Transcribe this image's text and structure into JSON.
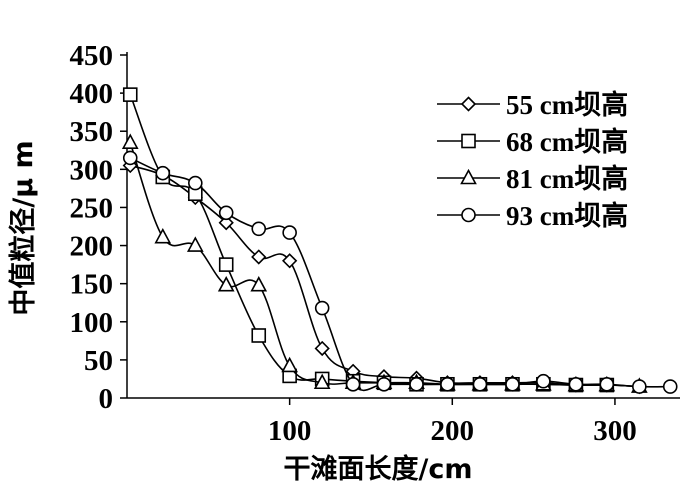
{
  "chart_data": {
    "type": "line",
    "xlabel": "干滩面长度/cm",
    "ylabel": "中值粒径/μ m",
    "xlim": [
      0,
      340
    ],
    "ylim": [
      0,
      450
    ],
    "xticks": [
      100,
      200,
      300
    ],
    "yticks": [
      0,
      50,
      100,
      150,
      200,
      250,
      300,
      350,
      400,
      450
    ],
    "legend_position": "top-right",
    "series": [
      {
        "name": "55 cm坝高",
        "marker": "diamond",
        "x": [
          2,
          22,
          42,
          61,
          81,
          100,
          120,
          139,
          158,
          178,
          197,
          217,
          237,
          256,
          276,
          295,
          315
        ],
        "y": [
          305,
          292,
          263,
          230,
          185,
          180,
          65,
          35,
          28,
          26,
          20,
          20,
          20,
          20,
          17,
          17,
          15
        ]
      },
      {
        "name": "68 cm坝高",
        "marker": "square",
        "x": [
          2,
          22,
          42,
          61,
          81,
          100,
          120,
          139,
          158,
          178,
          197,
          217,
          237,
          256,
          276,
          295
        ],
        "y": [
          398,
          290,
          268,
          175,
          82,
          29,
          25,
          22,
          20,
          18,
          18,
          18,
          18,
          18,
          17,
          17
        ]
      },
      {
        "name": "81 cm坝高",
        "marker": "triangle",
        "x": [
          2,
          22,
          42,
          61,
          81,
          100,
          120,
          139,
          158,
          178,
          197,
          217,
          237,
          256,
          276,
          295,
          315
        ],
        "y": [
          335,
          211,
          200,
          148,
          148,
          42,
          20,
          20,
          20,
          20,
          18,
          18,
          18,
          18,
          17,
          17,
          15
        ]
      },
      {
        "name": "93 cm坝高",
        "marker": "circle",
        "x": [
          2,
          22,
          42,
          61,
          81,
          100,
          120,
          139,
          158,
          178,
          197,
          217,
          237,
          256,
          276,
          295,
          315,
          334
        ],
        "y": [
          315,
          295,
          282,
          243,
          222,
          217,
          118,
          18,
          18,
          18,
          18,
          18,
          18,
          22,
          18,
          18,
          15,
          15
        ]
      }
    ]
  }
}
